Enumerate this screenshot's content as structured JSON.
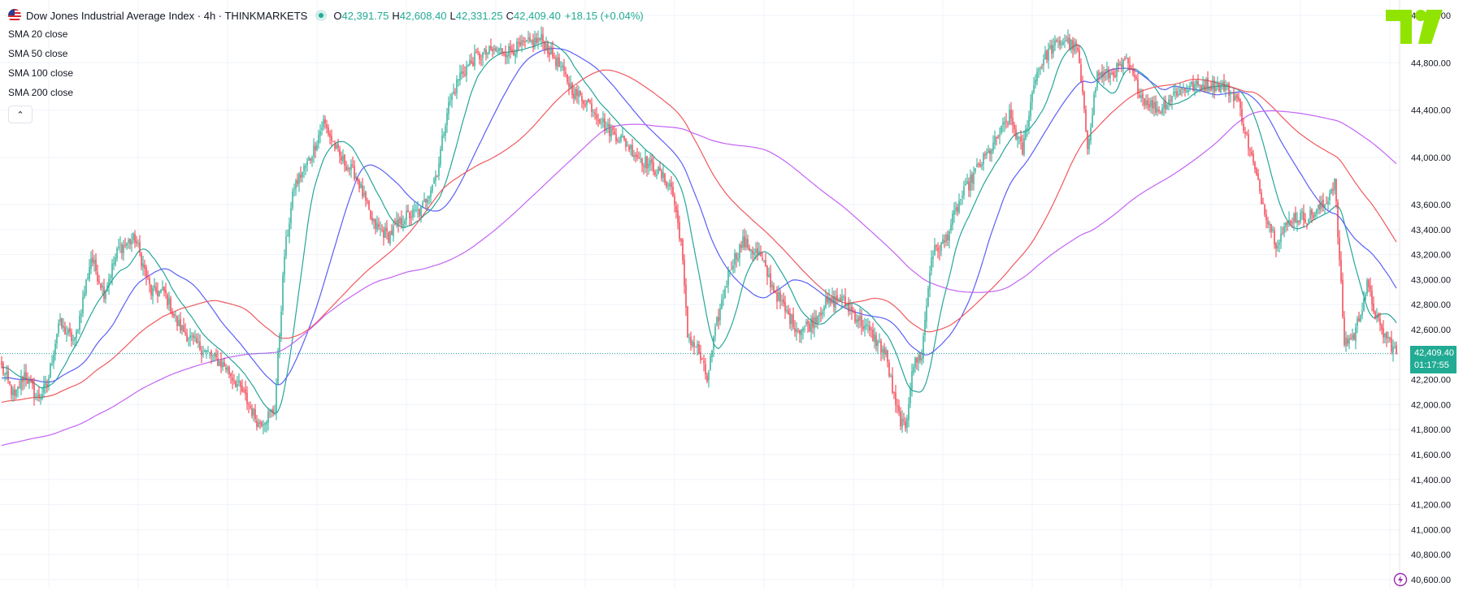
{
  "header": {
    "symbol_title": "Dow Jones Industrial Average Index · 4h · THINKMARKETS",
    "ohlc": [
      {
        "key": "O",
        "value": "42,391.75"
      },
      {
        "key": "H",
        "value": "42,608.40"
      },
      {
        "key": "L",
        "value": "42,331.25"
      },
      {
        "key": "C",
        "value": "42,409.40"
      }
    ],
    "change": "+18.15 (+0.04%)"
  },
  "indicators": [
    "SMA 20 close",
    "SMA 50 close",
    "SMA 100 close",
    "SMA 200 close"
  ],
  "collapse_label": "⌃",
  "last_price_label": "42,409.40",
  "countdown_label": "01:17:55",
  "colors": {
    "up": "#22ab94",
    "down": "#f23645",
    "sma20": "#26a69a",
    "sma50": "#5b5ff5",
    "sma100": "#f0595e",
    "sma200": "#c463f5",
    "grid": "#f0f3fa",
    "logo": "#91e400"
  },
  "chart_data": {
    "type": "candlestick",
    "title": "Dow Jones Industrial Average Index · 4h · THINKMARKETS",
    "timeframe": "4h",
    "ylim": [
      40500,
      45050
    ],
    "y_ticks": [
      40600,
      40800,
      41000,
      41200,
      41400,
      41600,
      41800,
      42000,
      42200,
      42400,
      42600,
      42800,
      43000,
      43200,
      43400,
      43600,
      44000,
      44400,
      44800,
      45200
    ],
    "y_tick_labels": [
      "40,600.00",
      "40,800.00",
      "41,000.00",
      "41,200.00",
      "41,400.00",
      "41,600.00",
      "41,800.00",
      "42,000.00",
      "42,200.00",
      "42,400.00",
      "42,600.00",
      "42,800.00",
      "43,000.00",
      "43,200.00",
      "43,400.00",
      "43,600.00",
      "44,000.00",
      "44,400.00",
      "44,800.00",
      "45,200.00"
    ],
    "last_price": 42409.4,
    "grid": true,
    "close_anchors": [
      [
        0,
        42300
      ],
      [
        8,
        42050
      ],
      [
        14,
        42250
      ],
      [
        22,
        42050
      ],
      [
        28,
        42150
      ],
      [
        35,
        42650
      ],
      [
        45,
        42500
      ],
      [
        55,
        43180
      ],
      [
        63,
        42900
      ],
      [
        72,
        43250
      ],
      [
        82,
        43330
      ],
      [
        92,
        42900
      ],
      [
        100,
        42900
      ],
      [
        108,
        42650
      ],
      [
        118,
        42500
      ],
      [
        128,
        42400
      ],
      [
        138,
        42300
      ],
      [
        148,
        42100
      ],
      [
        158,
        41850
      ],
      [
        168,
        41960
      ],
      [
        174,
        43200
      ],
      [
        180,
        43750
      ],
      [
        190,
        44000
      ],
      [
        198,
        44300
      ],
      [
        208,
        44000
      ],
      [
        218,
        43850
      ],
      [
        228,
        43450
      ],
      [
        238,
        43350
      ],
      [
        248,
        43500
      ],
      [
        258,
        43550
      ],
      [
        268,
        43880
      ],
      [
        274,
        44400
      ],
      [
        282,
        44700
      ],
      [
        292,
        44850
      ],
      [
        302,
        44900
      ],
      [
        312,
        44900
      ],
      [
        322,
        44950
      ],
      [
        332,
        45000
      ],
      [
        342,
        44800
      ],
      [
        352,
        44550
      ],
      [
        362,
        44450
      ],
      [
        372,
        44250
      ],
      [
        382,
        44150
      ],
      [
        392,
        44000
      ],
      [
        402,
        43900
      ],
      [
        412,
        43750
      ],
      [
        418,
        43300
      ],
      [
        422,
        42550
      ],
      [
        428,
        42450
      ],
      [
        434,
        42200
      ],
      [
        440,
        42650
      ],
      [
        448,
        43100
      ],
      [
        456,
        43300
      ],
      [
        466,
        43200
      ],
      [
        474,
        42950
      ],
      [
        482,
        42750
      ],
      [
        490,
        42600
      ],
      [
        498,
        42650
      ],
      [
        506,
        42800
      ],
      [
        516,
        42850
      ],
      [
        526,
        42700
      ],
      [
        536,
        42550
      ],
      [
        544,
        42400
      ],
      [
        550,
        41980
      ],
      [
        556,
        41780
      ],
      [
        560,
        42300
      ],
      [
        566,
        42400
      ],
      [
        572,
        43200
      ],
      [
        580,
        43300
      ],
      [
        590,
        43650
      ],
      [
        600,
        43900
      ],
      [
        610,
        44100
      ],
      [
        620,
        44350
      ],
      [
        628,
        44050
      ],
      [
        636,
        44700
      ],
      [
        644,
        44900
      ],
      [
        654,
        45000
      ],
      [
        662,
        44900
      ],
      [
        668,
        44100
      ],
      [
        674,
        44700
      ],
      [
        682,
        44700
      ],
      [
        692,
        44800
      ],
      [
        702,
        44500
      ],
      [
        712,
        44400
      ],
      [
        722,
        44550
      ],
      [
        732,
        44600
      ],
      [
        742,
        44620
      ],
      [
        752,
        44600
      ],
      [
        760,
        44500
      ],
      [
        768,
        44050
      ],
      [
        776,
        43600
      ],
      [
        784,
        43300
      ],
      [
        794,
        43500
      ],
      [
        804,
        43500
      ],
      [
        814,
        43600
      ],
      [
        820,
        43800
      ],
      [
        826,
        42500
      ],
      [
        832,
        42550
      ],
      [
        840,
        42950
      ],
      [
        848,
        42600
      ],
      [
        854,
        42500
      ],
      [
        858,
        42409
      ]
    ],
    "series": [
      {
        "name": "SMA 20 close",
        "period": 20
      },
      {
        "name": "SMA 50 close",
        "period": 50
      },
      {
        "name": "SMA 100 close",
        "period": 100
      },
      {
        "name": "SMA 200 close",
        "period": 200
      }
    ]
  }
}
